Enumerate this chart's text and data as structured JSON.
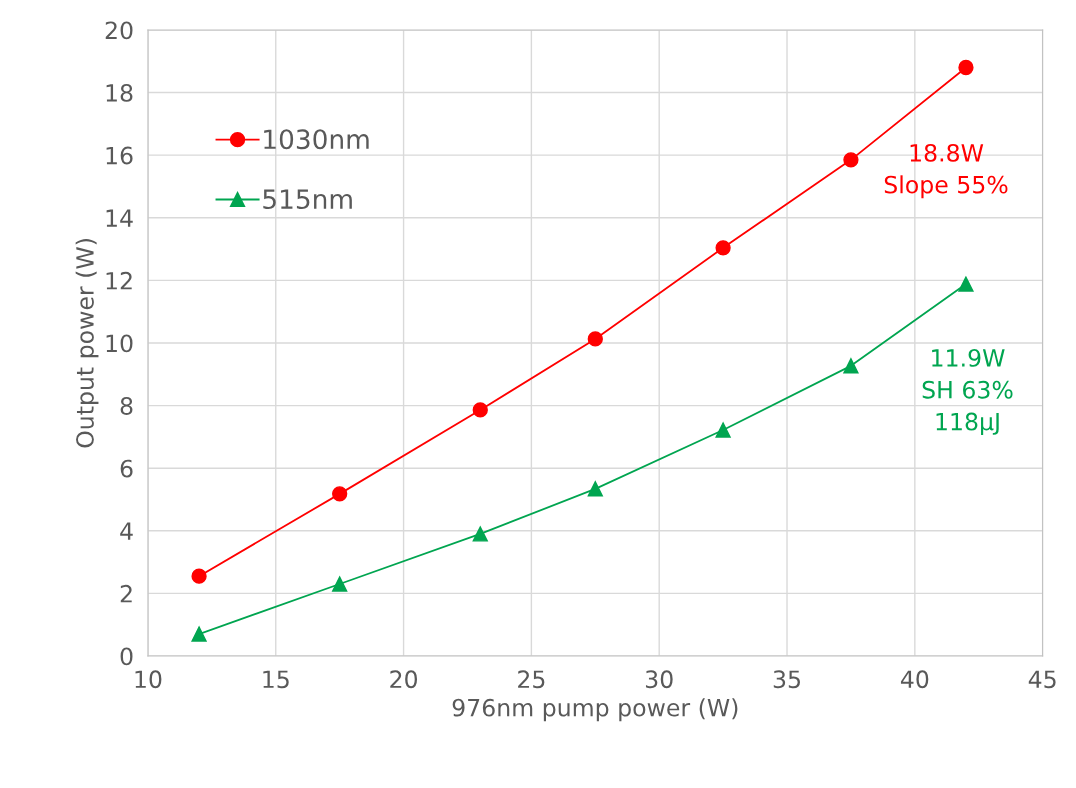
{
  "chart_data": {
    "type": "line",
    "xlabel": "976nm pump power (W)",
    "ylabel": "Output power (W)",
    "x": [
      12,
      17.5,
      23,
      27.5,
      32.5,
      37.5,
      42
    ],
    "series": [
      {
        "name": "1030nm",
        "color": "#ff0000",
        "marker": "circle",
        "values": [
          2.55,
          5.18,
          7.86,
          10.13,
          13.04,
          15.85,
          18.8
        ]
      },
      {
        "name": "515nm",
        "color": "#00a550",
        "marker": "triangle",
        "values": [
          0.7,
          2.3,
          3.9,
          5.34,
          7.22,
          9.27,
          11.88
        ]
      }
    ],
    "xlim": [
      10,
      45
    ],
    "xticks": [
      10,
      15,
      20,
      25,
      30,
      35,
      40,
      45
    ],
    "ylim": [
      0,
      20
    ],
    "yticks": [
      0,
      2,
      4,
      6,
      8,
      10,
      12,
      14,
      16,
      18,
      20
    ],
    "grid": true,
    "legend": "top left",
    "annotations": [
      "18.8W\nSlope 55%",
      "11.9W\nSH 63%\n118μJ"
    ]
  }
}
